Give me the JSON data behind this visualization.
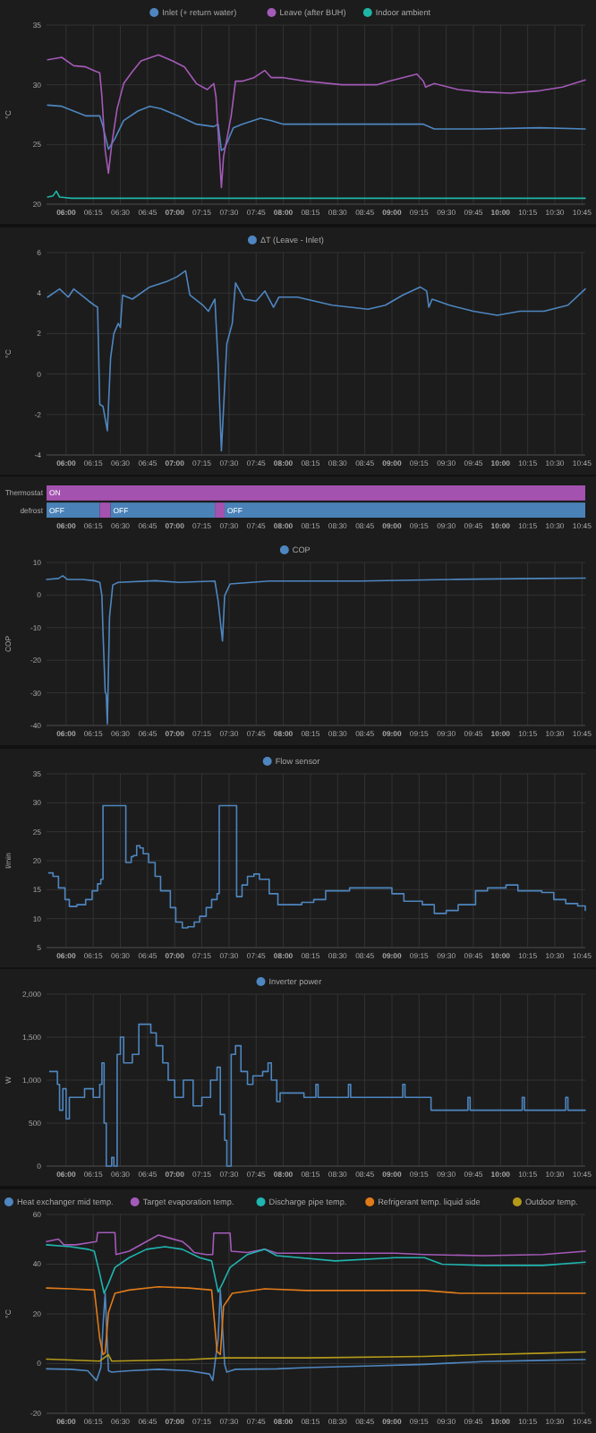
{
  "chart_data": [
    {
      "type": "line",
      "legend": "top",
      "grid": true,
      "ylabel": "°C",
      "xlim": [
        5.82,
        10.78
      ],
      "ylim": [
        20,
        35
      ],
      "yticks": [
        20,
        25,
        30,
        35
      ],
      "xticks": [
        {
          "value": 6,
          "label": "06:00"
        },
        {
          "value": 6.25,
          "label": "06:15"
        },
        {
          "value": 6.5,
          "label": "06:30"
        },
        {
          "value": 6.75,
          "label": "06:45"
        },
        {
          "value": 7,
          "label": "07:00"
        },
        {
          "value": 7.25,
          "label": "07:15"
        },
        {
          "value": 7.5,
          "label": "07:30"
        },
        {
          "value": 7.75,
          "label": "07:45"
        },
        {
          "value": 8,
          "label": "08:00"
        },
        {
          "value": 8.25,
          "label": "08:15"
        },
        {
          "value": 8.5,
          "label": "08:30"
        },
        {
          "value": 8.75,
          "label": "08:45"
        },
        {
          "value": 9,
          "label": "09:00"
        },
        {
          "value": 9.25,
          "label": "09:15"
        },
        {
          "value": 9.5,
          "label": "09:30"
        },
        {
          "value": 9.75,
          "label": "09:45"
        },
        {
          "value": 10,
          "label": "10:00"
        },
        {
          "value": 10.25,
          "label": "10:15"
        },
        {
          "value": 10.5,
          "label": "10:30"
        },
        {
          "value": 10.75,
          "label": "10:45"
        }
      ],
      "series": [
        {
          "name": "Inlet (+ return water)",
          "color": "#4e86c0",
          "x": [
            5.83,
            5.96,
            6.07,
            6.18,
            6.31,
            6.34,
            6.39,
            6.45,
            6.53,
            6.66,
            6.77,
            6.87,
            7.03,
            7.2,
            7.36,
            7.4,
            7.43,
            7.46,
            7.54,
            7.62,
            7.79,
            7.89,
            8.0,
            8.54,
            9.29,
            9.39,
            9.82,
            10.36,
            10.78
          ],
          "values": [
            28.3,
            28.2,
            27.8,
            27.4,
            27.4,
            26.5,
            24.6,
            25.5,
            27.0,
            27.8,
            28.2,
            28.0,
            27.4,
            26.7,
            26.5,
            26.7,
            24.5,
            24.7,
            26.4,
            26.7,
            27.2,
            27.0,
            26.7,
            26.7,
            26.7,
            26.3,
            26.3,
            26.4,
            26.3
          ]
        },
        {
          "name": "Leave (after BUH)",
          "color": "#a45ab8",
          "x": [
            5.83,
            5.96,
            6.07,
            6.18,
            6.28,
            6.31,
            6.33,
            6.36,
            6.39,
            6.42,
            6.47,
            6.53,
            6.61,
            6.69,
            6.85,
            6.98,
            7.09,
            7.2,
            7.3,
            7.36,
            7.38,
            7.41,
            7.43,
            7.45,
            7.52,
            7.56,
            7.62,
            7.73,
            7.83,
            7.89,
            8.0,
            8.21,
            8.54,
            8.86,
            8.97,
            9.23,
            9.29,
            9.31,
            9.39,
            9.61,
            9.82,
            10.09,
            10.36,
            10.57,
            10.78
          ],
          "values": [
            32.1,
            32.3,
            31.6,
            31.5,
            31.1,
            31.0,
            29.0,
            24.5,
            22.6,
            25.0,
            28.0,
            30.1,
            31.1,
            32.0,
            32.5,
            32.0,
            31.5,
            30.1,
            29.6,
            30.1,
            29.0,
            24.5,
            21.4,
            24.0,
            27.4,
            30.3,
            30.3,
            30.6,
            31.2,
            30.6,
            30.6,
            30.3,
            30.0,
            30.0,
            30.3,
            30.9,
            30.3,
            29.8,
            30.1,
            29.6,
            29.4,
            29.3,
            29.5,
            29.8,
            30.4
          ]
        },
        {
          "name": "Indoor ambient",
          "color": "#1fb5a6",
          "x": [
            5.83,
            5.88,
            5.91,
            5.94,
            6.05,
            7.5,
            9.0,
            10.78
          ],
          "values": [
            20.6,
            20.7,
            21.1,
            20.6,
            20.5,
            20.5,
            20.5,
            20.5
          ]
        }
      ]
    },
    {
      "type": "line",
      "legend": "top",
      "grid": true,
      "ylabel": "°C",
      "xlim": [
        5.82,
        10.78
      ],
      "ylim": [
        -4,
        6
      ],
      "yticks": [
        -4,
        -2,
        0,
        2,
        4,
        6
      ],
      "xticks": [
        {
          "value": 6,
          "label": "06:00"
        },
        {
          "value": 6.25,
          "label": "06:15"
        },
        {
          "value": 6.5,
          "label": "06:30"
        },
        {
          "value": 6.75,
          "label": "06:45"
        },
        {
          "value": 7,
          "label": "07:00"
        },
        {
          "value": 7.25,
          "label": "07:15"
        },
        {
          "value": 7.5,
          "label": "07:30"
        },
        {
          "value": 7.75,
          "label": "07:45"
        },
        {
          "value": 8,
          "label": "08:00"
        },
        {
          "value": 8.25,
          "label": "08:15"
        },
        {
          "value": 8.5,
          "label": "08:30"
        },
        {
          "value": 8.75,
          "label": "08:45"
        },
        {
          "value": 9,
          "label": "09:00"
        },
        {
          "value": 9.25,
          "label": "09:15"
        },
        {
          "value": 9.5,
          "label": "09:30"
        },
        {
          "value": 9.75,
          "label": "09:45"
        },
        {
          "value": 10,
          "label": "10:00"
        },
        {
          "value": 10.25,
          "label": "10:15"
        },
        {
          "value": 10.5,
          "label": "10:30"
        },
        {
          "value": 10.75,
          "label": "10:45"
        }
      ],
      "series": [
        {
          "name": "ΔT (Leave - Inlet)",
          "color": "#4e86c0",
          "x": [
            5.83,
            5.94,
            6.02,
            6.07,
            6.21,
            6.26,
            6.29,
            6.31,
            6.34,
            6.38,
            6.41,
            6.44,
            6.48,
            6.5,
            6.52,
            6.61,
            6.77,
            6.94,
            7.02,
            7.1,
            7.14,
            7.26,
            7.31,
            7.37,
            7.4,
            7.43,
            7.48,
            7.53,
            7.56,
            7.64,
            7.75,
            7.83,
            7.91,
            7.96,
            8.13,
            8.45,
            8.78,
            8.94,
            9.1,
            9.26,
            9.32,
            9.34,
            9.37,
            9.53,
            9.75,
            9.97,
            10.18,
            10.4,
            10.62,
            10.78
          ],
          "values": [
            3.8,
            4.2,
            3.8,
            4.2,
            3.6,
            3.4,
            3.3,
            -1.5,
            -1.6,
            -2.8,
            0.8,
            2.0,
            2.5,
            2.3,
            3.9,
            3.7,
            4.3,
            4.6,
            4.8,
            5.1,
            3.9,
            3.4,
            3.1,
            3.7,
            0.5,
            -3.8,
            1.5,
            2.5,
            4.5,
            3.7,
            3.6,
            4.1,
            3.3,
            3.8,
            3.8,
            3.4,
            3.2,
            3.4,
            3.9,
            4.3,
            4.1,
            3.3,
            3.7,
            3.4,
            3.1,
            2.9,
            3.1,
            3.1,
            3.4,
            4.2
          ]
        }
      ]
    },
    {
      "type": "bar",
      "orientation": "horizontal",
      "categories": [
        "Thermostat",
        "defrost"
      ],
      "xlim": [
        5.82,
        10.78
      ],
      "xticks": [
        {
          "value": 6,
          "label": "06:00"
        },
        {
          "value": 6.25,
          "label": "06:15"
        },
        {
          "value": 6.5,
          "label": "06:30"
        },
        {
          "value": 6.75,
          "label": "06:45"
        },
        {
          "value": 7,
          "label": "07:00"
        },
        {
          "value": 7.25,
          "label": "07:15"
        },
        {
          "value": 7.5,
          "label": "07:30"
        },
        {
          "value": 7.75,
          "label": "07:45"
        },
        {
          "value": 8,
          "label": "08:00"
        },
        {
          "value": 8.25,
          "label": "08:15"
        },
        {
          "value": 8.5,
          "label": "08:30"
        },
        {
          "value": 8.75,
          "label": "08:45"
        },
        {
          "value": 9,
          "label": "09:00"
        },
        {
          "value": 9.25,
          "label": "09:15"
        },
        {
          "value": 9.5,
          "label": "09:30"
        },
        {
          "value": 9.75,
          "label": "09:45"
        },
        {
          "value": 10,
          "label": "10:00"
        },
        {
          "value": 10.25,
          "label": "10:15"
        },
        {
          "value": 10.5,
          "label": "10:30"
        },
        {
          "value": 10.75,
          "label": "10:45"
        }
      ],
      "series": [
        {
          "color": "#a452b0",
          "base": [
            5.82,
            null
          ],
          "values": [
            4.96,
            null
          ],
          "value_labels": [
            "ON",
            null
          ]
        },
        {
          "color": "#4a82b8",
          "base": [
            null,
            5.82
          ],
          "values": [
            null,
            0.49
          ],
          "value_labels": [
            null,
            "OFF"
          ]
        },
        {
          "color": "#a452b0",
          "base": [
            null,
            6.31
          ],
          "values": [
            null,
            0.1
          ]
        },
        {
          "color": "#4a82b8",
          "base": [
            null,
            6.41
          ],
          "values": [
            null,
            0.96
          ],
          "value_labels": [
            null,
            "OFF"
          ]
        },
        {
          "color": "#a452b0",
          "base": [
            null,
            7.37
          ],
          "values": [
            null,
            0.09
          ]
        },
        {
          "color": "#4a82b8",
          "base": [
            null,
            7.46
          ],
          "values": [
            null,
            3.32
          ],
          "value_labels": [
            null,
            "OFF"
          ]
        }
      ]
    },
    {
      "type": "line",
      "legend": "top",
      "grid": true,
      "ylabel": "COP",
      "xlim": [
        5.82,
        10.78
      ],
      "ylim": [
        -40,
        10
      ],
      "yticks": [
        -40,
        -30,
        -20,
        -10,
        0,
        10
      ],
      "xticks": [
        {
          "value": 6,
          "label": "06:00"
        },
        {
          "value": 6.25,
          "label": "06:15"
        },
        {
          "value": 6.5,
          "label": "06:30"
        },
        {
          "value": 6.75,
          "label": "06:45"
        },
        {
          "value": 7,
          "label": "07:00"
        },
        {
          "value": 7.25,
          "label": "07:15"
        },
        {
          "value": 7.5,
          "label": "07:30"
        },
        {
          "value": 7.75,
          "label": "07:45"
        },
        {
          "value": 8,
          "label": "08:00"
        },
        {
          "value": 8.25,
          "label": "08:15"
        },
        {
          "value": 8.5,
          "label": "08:30"
        },
        {
          "value": 8.75,
          "label": "08:45"
        },
        {
          "value": 9,
          "label": "09:00"
        },
        {
          "value": 9.25,
          "label": "09:15"
        },
        {
          "value": 9.5,
          "label": "09:30"
        },
        {
          "value": 9.75,
          "label": "09:45"
        },
        {
          "value": 10,
          "label": "10:00"
        },
        {
          "value": 10.25,
          "label": "10:15"
        },
        {
          "value": 10.5,
          "label": "10:30"
        },
        {
          "value": 10.75,
          "label": "10:45"
        }
      ],
      "series": [
        {
          "name": "COP",
          "color": "#4e86c0",
          "x": [
            5.82,
            5.93,
            5.97,
            6.01,
            6.15,
            6.26,
            6.31,
            6.33,
            6.34,
            6.36,
            6.37,
            6.38,
            6.4,
            6.43,
            6.48,
            6.82,
            7.04,
            7.37,
            7.4,
            7.44,
            7.46,
            7.51,
            7.87,
            8.71,
            9.54,
            10.37,
            10.78
          ],
          "values": [
            4.8,
            5.1,
            5.9,
            4.8,
            4.8,
            4.4,
            3.9,
            -0.2,
            -11.6,
            -29.7,
            -30.5,
            -39.5,
            -6.7,
            3.1,
            3.9,
            4.4,
            3.9,
            4.3,
            -1.8,
            -14.1,
            -0.2,
            3.4,
            4.3,
            4.3,
            4.8,
            5.1,
            5.2
          ]
        }
      ]
    },
    {
      "type": "step",
      "legend": "top",
      "grid": true,
      "ylabel": "l/min",
      "xlim": [
        5.82,
        10.78
      ],
      "ylim": [
        5,
        35
      ],
      "yticks": [
        5,
        10,
        15,
        20,
        25,
        30,
        35
      ],
      "xticks": [
        {
          "value": 6,
          "label": "06:00"
        },
        {
          "value": 6.25,
          "label": "06:15"
        },
        {
          "value": 6.5,
          "label": "06:30"
        },
        {
          "value": 6.75,
          "label": "06:45"
        },
        {
          "value": 7,
          "label": "07:00"
        },
        {
          "value": 7.25,
          "label": "07:15"
        },
        {
          "value": 7.5,
          "label": "07:30"
        },
        {
          "value": 7.75,
          "label": "07:45"
        },
        {
          "value": 8,
          "label": "08:00"
        },
        {
          "value": 8.25,
          "label": "08:15"
        },
        {
          "value": 8.5,
          "label": "08:30"
        },
        {
          "value": 8.75,
          "label": "08:45"
        },
        {
          "value": 9,
          "label": "09:00"
        },
        {
          "value": 9.25,
          "label": "09:15"
        },
        {
          "value": 9.5,
          "label": "09:30"
        },
        {
          "value": 9.75,
          "label": "09:45"
        },
        {
          "value": 10,
          "label": "10:00"
        },
        {
          "value": 10.25,
          "label": "10:15"
        },
        {
          "value": 10.5,
          "label": "10:30"
        },
        {
          "value": 10.75,
          "label": "10:45"
        }
      ],
      "series": [
        {
          "name": "Flow sensor",
          "color": "#4e86c0",
          "x": [
            5.84,
            5.88,
            5.93,
            5.99,
            6.03,
            6.1,
            6.18,
            6.24,
            6.29,
            6.32,
            6.34,
            6.38,
            6.51,
            6.54,
            6.55,
            6.6,
            6.62,
            6.65,
            6.68,
            6.71,
            6.76,
            6.82,
            6.87,
            6.96,
            7.01,
            7.07,
            7.12,
            7.18,
            7.23,
            7.29,
            7.34,
            7.39,
            7.41,
            7.45,
            7.56,
            7.57,
            7.62,
            7.67,
            7.73,
            7.78,
            7.87,
            7.95,
            8.06,
            8.17,
            8.28,
            8.39,
            8.5,
            8.61,
            8.72,
            8.89,
            9.0,
            9.11,
            9.28,
            9.39,
            9.5,
            9.61,
            9.77,
            9.88,
            10.05,
            10.16,
            10.38,
            10.49,
            10.6,
            10.71,
            10.78
          ],
          "values": [
            17.9,
            17.3,
            15.3,
            13.3,
            12.1,
            12.4,
            13.3,
            14.8,
            16.0,
            16.8,
            29.5,
            29.5,
            29.5,
            29.5,
            19.7,
            20.7,
            20.9,
            22.6,
            22.2,
            21.2,
            19.7,
            17.3,
            14.8,
            11.9,
            9.4,
            8.4,
            8.6,
            9.4,
            10.4,
            11.9,
            13.3,
            14.3,
            29.5,
            29.5,
            29.5,
            13.8,
            15.8,
            17.3,
            17.7,
            16.8,
            14.3,
            12.4,
            12.4,
            12.8,
            13.3,
            14.8,
            14.8,
            15.3,
            15.3,
            15.3,
            14.3,
            13.0,
            12.4,
            10.9,
            11.4,
            12.4,
            14.8,
            15.3,
            15.8,
            14.8,
            14.5,
            13.3,
            12.6,
            12.2,
            11.4
          ]
        }
      ]
    },
    {
      "type": "step",
      "legend": "top",
      "grid": true,
      "ylabel": "W",
      "xlim": [
        5.82,
        10.78
      ],
      "ylim": [
        0,
        2000
      ],
      "yticks": [
        0,
        500,
        {
          "value": 1000,
          "label": "1,000"
        },
        {
          "value": 1500,
          "label": "1,500"
        },
        {
          "value": 2000,
          "label": "2,000"
        }
      ],
      "xticks": [
        {
          "value": 6,
          "label": "06:00"
        },
        {
          "value": 6.25,
          "label": "06:15"
        },
        {
          "value": 6.5,
          "label": "06:30"
        },
        {
          "value": 6.75,
          "label": "06:45"
        },
        {
          "value": 7,
          "label": "07:00"
        },
        {
          "value": 7.25,
          "label": "07:15"
        },
        {
          "value": 7.5,
          "label": "07:30"
        },
        {
          "value": 7.75,
          "label": "07:45"
        },
        {
          "value": 8,
          "label": "08:00"
        },
        {
          "value": 8.25,
          "label": "08:15"
        },
        {
          "value": 8.5,
          "label": "08:30"
        },
        {
          "value": 8.75,
          "label": "08:45"
        },
        {
          "value": 9,
          "label": "09:00"
        },
        {
          "value": 9.25,
          "label": "09:15"
        },
        {
          "value": 9.5,
          "label": "09:30"
        },
        {
          "value": 9.75,
          "label": "09:45"
        },
        {
          "value": 10,
          "label": "10:00"
        },
        {
          "value": 10.25,
          "label": "10:15"
        },
        {
          "value": 10.5,
          "label": "10:30"
        },
        {
          "value": 10.75,
          "label": "10:45"
        }
      ],
      "series": [
        {
          "name": "Inverter power",
          "color": "#4e86c0",
          "x": [
            5.85,
            5.92,
            5.94,
            5.97,
            6.0,
            6.03,
            6.08,
            6.17,
            6.25,
            6.31,
            6.33,
            6.35,
            6.37,
            6.42,
            6.44,
            6.47,
            6.5,
            6.53,
            6.61,
            6.67,
            6.78,
            6.83,
            6.89,
            6.94,
            7.0,
            7.08,
            7.17,
            7.25,
            7.33,
            7.39,
            7.42,
            7.46,
            7.48,
            7.52,
            7.56,
            7.61,
            7.67,
            7.72,
            7.81,
            7.86,
            7.89,
            7.94,
            7.97,
            8.19,
            8.3,
            8.32,
            8.53,
            8.6,
            8.62,
            8.86,
            9.1,
            9.12,
            9.31,
            9.36,
            9.7,
            9.72,
            9.86,
            10.2,
            10.22,
            10.42,
            10.6,
            10.62,
            10.78
          ],
          "values": [
            1100,
            950,
            650,
            900,
            550,
            800,
            800,
            900,
            800,
            950,
            1200,
            500,
            0,
            100,
            0,
            1300,
            1500,
            1200,
            1300,
            1650,
            1550,
            1400,
            1200,
            1000,
            800,
            1000,
            700,
            800,
            1000,
            1150,
            600,
            300,
            0,
            1300,
            1400,
            1100,
            950,
            1050,
            1100,
            1200,
            1000,
            750,
            850,
            800,
            950,
            800,
            800,
            950,
            800,
            800,
            950,
            800,
            800,
            650,
            800,
            650,
            650,
            800,
            650,
            650,
            800,
            650,
            650
          ]
        }
      ]
    },
    {
      "type": "line",
      "legend": "top",
      "grid": true,
      "ylabel": "°C",
      "xlim": [
        5.82,
        10.78
      ],
      "ylim": [
        -20,
        60
      ],
      "yticks": [
        -20,
        0,
        20,
        40,
        60
      ],
      "xticks": [
        {
          "value": 6,
          "label": "06:00"
        },
        {
          "value": 6.25,
          "label": "06:15"
        },
        {
          "value": 6.5,
          "label": "06:30"
        },
        {
          "value": 6.75,
          "label": "06:45"
        },
        {
          "value": 7,
          "label": "07:00"
        },
        {
          "value": 7.25,
          "label": "07:15"
        },
        {
          "value": 7.5,
          "label": "07:30"
        },
        {
          "value": 7.75,
          "label": "07:45"
        },
        {
          "value": 8,
          "label": "08:00"
        },
        {
          "value": 8.25,
          "label": "08:15"
        },
        {
          "value": 8.5,
          "label": "08:30"
        },
        {
          "value": 8.75,
          "label": "08:45"
        },
        {
          "value": 9,
          "label": "09:00"
        },
        {
          "value": 9.25,
          "label": "09:15"
        },
        {
          "value": 9.5,
          "label": "09:30"
        },
        {
          "value": 9.75,
          "label": "09:45"
        },
        {
          "value": 10,
          "label": "10:00"
        },
        {
          "value": 10.25,
          "label": "10:15"
        },
        {
          "value": 10.5,
          "label": "10:30"
        },
        {
          "value": 10.75,
          "label": "10:45"
        }
      ],
      "series": [
        {
          "name": "Heat exchanger mid temp.",
          "color": "#4e86c0",
          "x": [
            5.82,
            6.04,
            6.2,
            6.28,
            6.32,
            6.34,
            6.36,
            6.39,
            6.42,
            6.58,
            6.85,
            7.13,
            7.32,
            7.35,
            7.4,
            7.42,
            7.46,
            7.48,
            7.56,
            7.94,
            8.21,
            8.76,
            9.3,
            9.84,
            10.39,
            10.78
          ],
          "values": [
            -2.1,
            -2.3,
            -2.9,
            -6.8,
            -1.6,
            15.3,
            28.3,
            -2.9,
            -3.4,
            -2.9,
            -2.3,
            -2.9,
            -4.2,
            -6.8,
            10,
            29.6,
            -0.3,
            -3.4,
            -2.3,
            -2.1,
            -1.6,
            -1.0,
            -0.3,
            0.8,
            1.3,
            1.6
          ]
        },
        {
          "name": "Target evaporation temp.",
          "color": "#a45ab8",
          "x": [
            5.82,
            5.93,
            5.98,
            6.09,
            6.28,
            6.29,
            6.45,
            6.46,
            6.58,
            6.74,
            6.85,
            6.96,
            7.07,
            7.13,
            7.18,
            7.29,
            7.35,
            7.36,
            7.51,
            7.52,
            7.67,
            7.83,
            7.94,
            8.48,
            9.03,
            9.3,
            9.84,
            10.39,
            10.78
          ],
          "values": [
            49.1,
            50.1,
            47.8,
            47.8,
            49.1,
            52.7,
            52.7,
            43.9,
            45.2,
            49.1,
            51.7,
            50.4,
            49.1,
            47,
            44.7,
            43.9,
            43.9,
            52.5,
            52.5,
            45.2,
            44.7,
            46,
            44.4,
            44.4,
            44.4,
            43.9,
            43.4,
            43.9,
            45.2
          ]
        },
        {
          "name": "Discharge pipe temp.",
          "color": "#1fb5b0",
          "x": [
            5.82,
            6.04,
            6.2,
            6.26,
            6.31,
            6.35,
            6.39,
            6.45,
            6.58,
            6.74,
            6.91,
            7.07,
            7.23,
            7.34,
            7.4,
            7.44,
            7.51,
            7.67,
            7.83,
            7.94,
            8.48,
            9.03,
            9.3,
            9.46,
            9.84,
            10.39,
            10.78
          ],
          "values": [
            47.8,
            47,
            46,
            45.2,
            36.1,
            28.3,
            32.2,
            38.7,
            42.6,
            46,
            47,
            46,
            42.6,
            41.3,
            28.8,
            32.2,
            38.7,
            43.9,
            46,
            43.4,
            41.3,
            42.6,
            42.6,
            40,
            39.5,
            39.5,
            40.8
          ]
        },
        {
          "name": "Refrigerant temp. liquid side",
          "color": "#e07b1a",
          "x": [
            5.82,
            6.04,
            6.26,
            6.31,
            6.34,
            6.36,
            6.39,
            6.45,
            6.58,
            6.85,
            7.13,
            7.34,
            7.39,
            7.42,
            7.45,
            7.53,
            7.83,
            8.21,
            9.3,
            9.63,
            10.78
          ],
          "values": [
            30.4,
            30.1,
            29.6,
            10.1,
            3.6,
            4.4,
            20.5,
            28.3,
            29.6,
            30.9,
            30.4,
            29.6,
            4.9,
            3.6,
            23.1,
            28.3,
            30.1,
            29.4,
            29.4,
            28.3,
            28.3
          ]
        },
        {
          "name": "Outdoor temp.",
          "color": "#b59a1a",
          "x": [
            5.82,
            6.31,
            6.39,
            6.42,
            7.13,
            7.45,
            8.21,
            9.3,
            9.84,
            10.39,
            10.78
          ],
          "values": [
            1.8,
            1.0,
            3.6,
            1.0,
            1.6,
            2.3,
            2.3,
            2.9,
            3.6,
            4.2,
            4.7
          ]
        }
      ]
    }
  ]
}
